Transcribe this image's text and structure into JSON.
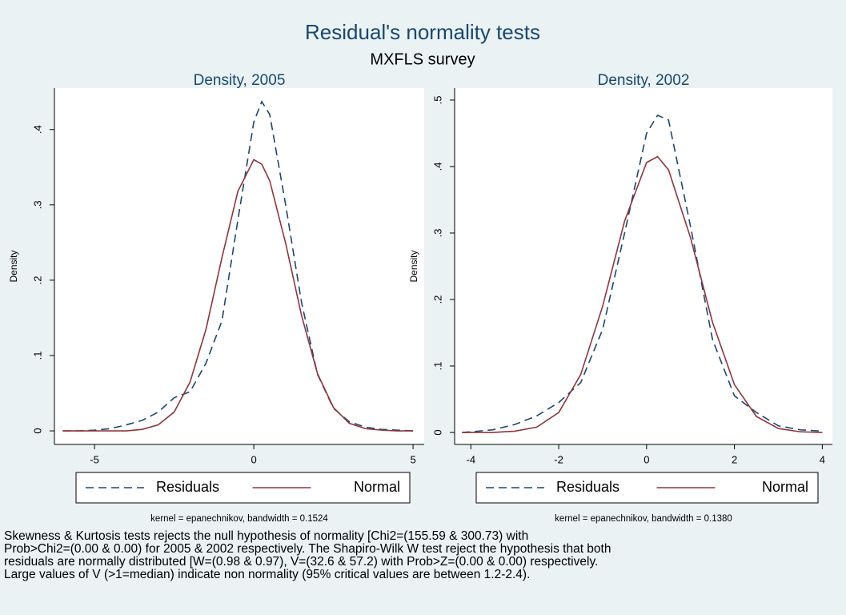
{
  "title": "Residual's normality tests",
  "subtitle": "MXFLS survey",
  "caption": [
    "Skewness & Kurtosis tests rejects the null hypothesis of normality [Chi2=(155.59 & 300.73) with",
    "Prob>Chi2=(0.00 & 0.00) for 2005 & 2002 respectively. The Shapiro-Wilk W test reject the hypothesis that both",
    "residuals are normally distributed [W=(0.98 & 0.97), V=(32.6 & 57.2) with Prob>Z=(0.00 & 0.00) respectively.",
    "Large values of V (>1=median) indicate non normality (95% critical values are between 1.2-2.4)."
  ],
  "chart_data": [
    {
      "type": "line",
      "title": "Density, 2005",
      "y_label": "Density",
      "note": "kernel = epanechnikov, bandwidth = 0.1524",
      "x": [
        -6,
        -5.5,
        -5,
        -4.5,
        -4,
        -3.5,
        -3,
        -2.5,
        -2,
        -1.5,
        -1,
        -0.5,
        0,
        0.25,
        0.5,
        1,
        1.5,
        2,
        2.5,
        3,
        3.5,
        4,
        4.5,
        5
      ],
      "series": [
        {
          "name": "Residuals",
          "color": "#1a476f",
          "dash": true,
          "values": [
            0,
            0,
            0.001,
            0.003,
            0.008,
            0.014,
            0.025,
            0.044,
            0.052,
            0.09,
            0.146,
            0.28,
            0.41,
            0.437,
            0.42,
            0.3,
            0.17,
            0.075,
            0.03,
            0.012,
            0.005,
            0.002,
            0.001,
            0
          ]
        },
        {
          "name": "Normal",
          "color": "#90353b",
          "dash": false,
          "values": [
            0,
            0,
            0,
            0,
            0,
            0.002,
            0.008,
            0.025,
            0.065,
            0.135,
            0.23,
            0.318,
            0.36,
            0.354,
            0.332,
            0.249,
            0.153,
            0.076,
            0.031,
            0.01,
            0.003,
            0.001,
            0,
            0
          ]
        }
      ],
      "xlim": [
        -6.26,
        5.35
      ],
      "ylim": [
        -0.018,
        0.455
      ],
      "xticks": [
        -5,
        0,
        5
      ],
      "yticks": [
        0,
        {
          "value": 0.1,
          "label": ".1"
        },
        {
          "value": 0.2,
          "label": ".2"
        },
        {
          "value": 0.3,
          "label": ".3"
        },
        {
          "value": 0.4,
          "label": ".4"
        }
      ],
      "grid": false,
      "legend": "bottom"
    },
    {
      "type": "line",
      "title": "Density, 2002",
      "y_label": "Density",
      "note": "kernel = epanechnikov, bandwidth = 0.1380",
      "x": [
        -4.2,
        -4,
        -3.5,
        -3,
        -2.5,
        -2,
        -1.5,
        -1,
        -0.5,
        0,
        0.25,
        0.5,
        1,
        1.5,
        2,
        2.5,
        3,
        3.5,
        4
      ],
      "series": [
        {
          "name": "Residuals",
          "color": "#1a476f",
          "dash": true,
          "values": [
            0,
            0.001,
            0.004,
            0.012,
            0.025,
            0.045,
            0.075,
            0.155,
            0.3,
            0.45,
            0.477,
            0.47,
            0.31,
            0.14,
            0.055,
            0.03,
            0.01,
            0.004,
            0.002
          ]
        },
        {
          "name": "Normal",
          "color": "#90353b",
          "dash": false,
          "values": [
            0,
            0,
            0,
            0.002,
            0.008,
            0.03,
            0.087,
            0.19,
            0.318,
            0.406,
            0.415,
            0.395,
            0.293,
            0.166,
            0.072,
            0.024,
            0.006,
            0.001,
            0
          ]
        }
      ],
      "xlim": [
        -4.37,
        4.23
      ],
      "ylim": [
        -0.018,
        0.518
      ],
      "xticks": [
        -4,
        -2,
        0,
        2,
        4
      ],
      "yticks": [
        0,
        {
          "value": 0.1,
          "label": ".1"
        },
        {
          "value": 0.2,
          "label": ".2"
        },
        {
          "value": 0.3,
          "label": ".3"
        },
        {
          "value": 0.4,
          "label": ".4"
        },
        {
          "value": 0.5,
          "label": ".5"
        }
      ],
      "grid": false,
      "legend": "bottom"
    }
  ]
}
